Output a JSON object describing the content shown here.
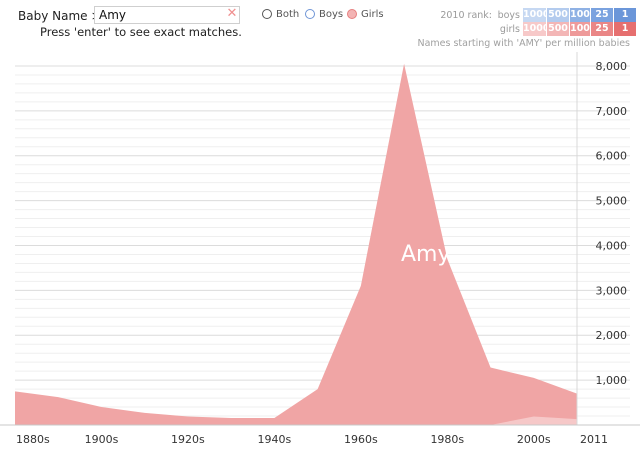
{
  "search": {
    "label": "Baby Name >",
    "value": "Amy",
    "hint": "Press 'enter' to see exact matches."
  },
  "radio": {
    "both": "Both",
    "boys": "Boys",
    "girls": "Girls",
    "selected": "Girls"
  },
  "rank": {
    "title": "2010 rank:",
    "boys_label": "boys",
    "girls_label": "girls",
    "cells": [
      "1000",
      "500",
      "100",
      "25",
      "1"
    ],
    "boys_colors": [
      "#c6d8f2",
      "#b3cbee",
      "#8fb1e4",
      "#7aa2df",
      "#6b96d9"
    ],
    "girls_colors": [
      "#f7c9c9",
      "#f3b6b6",
      "#ee9a9a",
      "#ea8686",
      "#e66f6f"
    ]
  },
  "subtitle": "Names starting with 'AMY' per million babies",
  "colors": {
    "girls_area": "#f0a5a5",
    "boys_area": "#f6c8c8",
    "grid": "#dcdcdc"
  },
  "chart_data": {
    "type": "area",
    "name_label": "Amy",
    "x": [
      "1880s",
      "1890s",
      "1900s",
      "1910s",
      "1920s",
      "1930s",
      "1940s",
      "1950s",
      "1960s",
      "1970s",
      "1980s",
      "1990s",
      "2000s",
      "2011"
    ],
    "series": [
      {
        "name": "Girls",
        "values": [
          750,
          620,
          400,
          270,
          190,
          155,
          155,
          800,
          3100,
          8050,
          3700,
          1280,
          1050,
          700
        ]
      },
      {
        "name": "Boys",
        "values": [
          0,
          0,
          0,
          0,
          0,
          0,
          0,
          0,
          0,
          0,
          0,
          0,
          190,
          130
        ]
      }
    ],
    "ylim": [
      0,
      8200
    ],
    "y_ticks": [
      "1,000",
      "2,000",
      "3,000",
      "4,000",
      "5,000",
      "6,000",
      "7,000",
      "8,000"
    ],
    "x_tick_labels": [
      "1880s",
      "1900s",
      "1920s",
      "1940s",
      "1960s",
      "1980s",
      "2000s",
      "2011"
    ],
    "grid": true
  }
}
